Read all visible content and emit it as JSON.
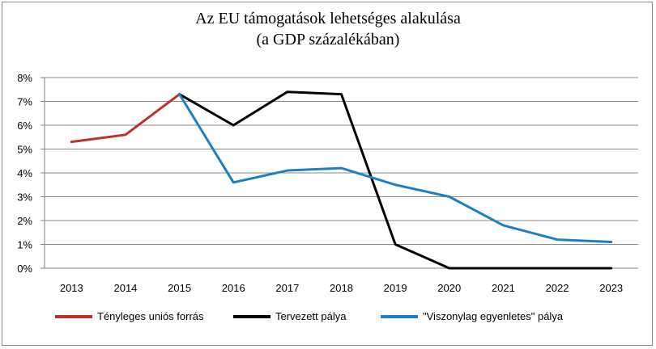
{
  "chart_data": {
    "type": "line",
    "title": [
      "Az EU támogatások lehetséges alakulása",
      "(a GDP százalékában)"
    ],
    "xlabel": "",
    "ylabel": "",
    "categories": [
      "2013",
      "2014",
      "2015",
      "2016",
      "2017",
      "2018",
      "2019",
      "2020",
      "2021",
      "2022",
      "2023"
    ],
    "y_ticks": [
      "0%",
      "1%",
      "2%",
      "3%",
      "4%",
      "5%",
      "6%",
      "7%",
      "8%"
    ],
    "ylim": [
      0,
      8
    ],
    "grid": true,
    "legend_position": "bottom",
    "series": [
      {
        "name": "Tényleges uniós forrás",
        "color": "#c0302e",
        "values": [
          5.3,
          5.6,
          7.3,
          null,
          null,
          null,
          null,
          null,
          null,
          null,
          null
        ]
      },
      {
        "name": "Tervezett pálya",
        "color": "#000000",
        "values": [
          null,
          null,
          7.3,
          6.0,
          7.4,
          7.3,
          1.0,
          0.0,
          0.0,
          0.0,
          0.0
        ]
      },
      {
        "name": "\"Viszonylag egyenletes\" pálya",
        "color": "#1f7fc4",
        "values": [
          null,
          null,
          7.3,
          3.6,
          4.1,
          4.2,
          3.5,
          3.0,
          1.8,
          1.2,
          1.1
        ]
      }
    ]
  }
}
